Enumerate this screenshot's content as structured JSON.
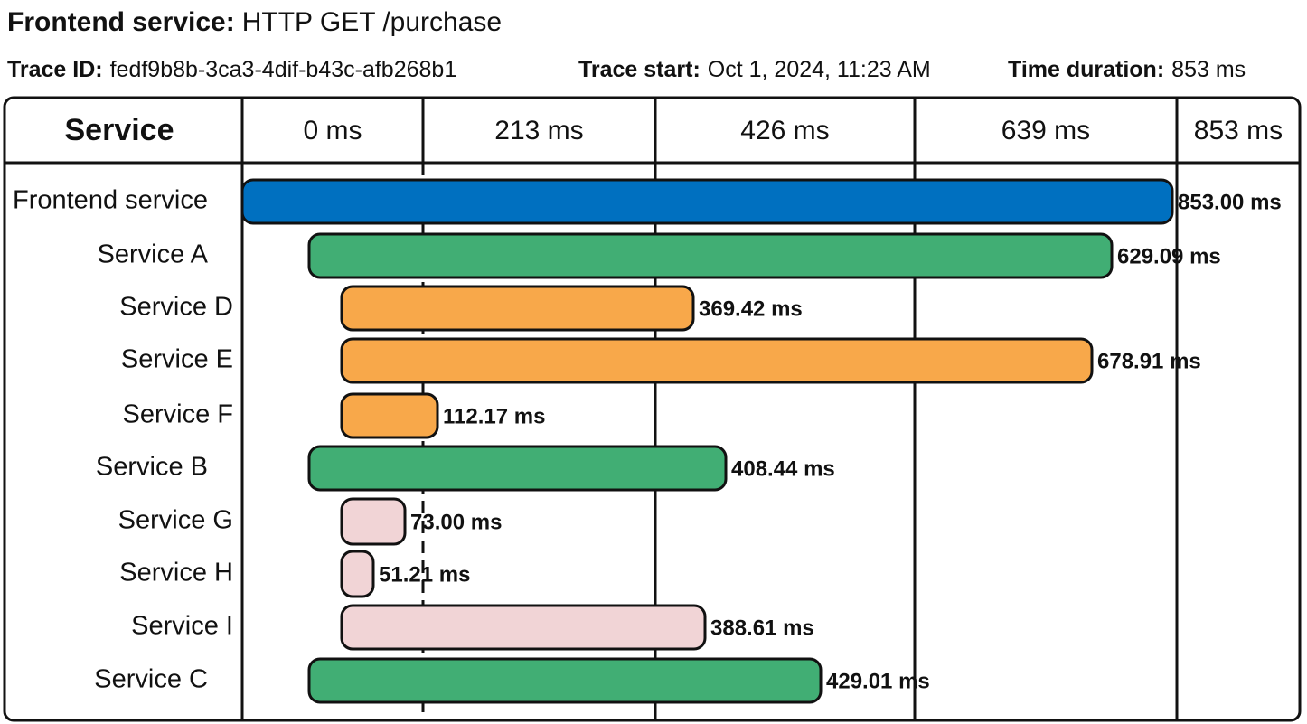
{
  "header": {
    "title": {
      "label": "Frontend service:",
      "value": "HTTP GET /purchase"
    },
    "info": [
      {
        "label": "Trace ID:",
        "value": "fedf9b8b-3ca3-4dif-b43c-afb268b1"
      },
      {
        "label": "Trace start:",
        "value": "Oct 1, 2024, 11:23 AM"
      },
      {
        "label": "Time duration:",
        "value": "853 ms"
      }
    ]
  },
  "table": {
    "columns": [
      "Service",
      "0 ms",
      "213 ms",
      "426 ms",
      "639 ms",
      "853 ms"
    ],
    "rows": [
      {
        "service": "Frontend service",
        "duration": "853.00 ms",
        "color": "#0070c0"
      },
      {
        "service": "Service A",
        "duration": "629.09 ms",
        "color": "#41ae74"
      },
      {
        "service": "Service D",
        "duration": "369.42 ms",
        "color": "#f8a84a"
      },
      {
        "service": "Service E",
        "duration": "678.91 ms",
        "color": "#f8a84a"
      },
      {
        "service": "Service F",
        "duration": "112.17 ms",
        "color": "#f8a84a"
      },
      {
        "service": "Service B",
        "duration": "408.44 ms",
        "color": "#41ae74"
      },
      {
        "service": "Service G",
        "duration": "73.00 ms",
        "color": "#f1d4d6"
      },
      {
        "service": "Service H",
        "duration": "51.21 ms",
        "color": "#f1d4d6"
      },
      {
        "service": "Service I",
        "duration": "388.61 ms",
        "color": "#f1d4d6"
      },
      {
        "service": "Service C",
        "duration": "429.01 ms",
        "color": "#41ae74"
      }
    ]
  }
}
